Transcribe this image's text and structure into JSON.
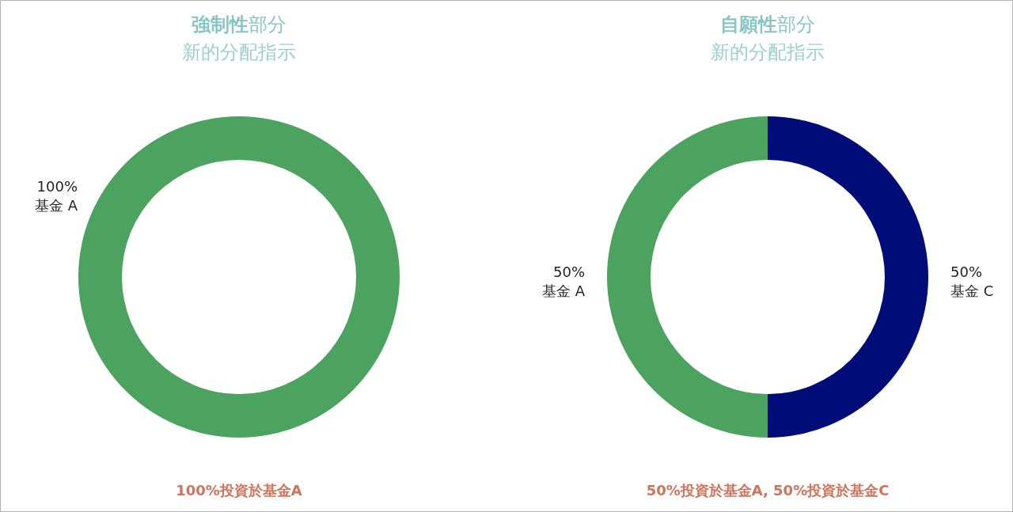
{
  "chart_data": [
    {
      "type": "donut",
      "title": "**強制性**部分",
      "subtitle": "新的分配指示",
      "categories": [
        "基金 A"
      ],
      "values": [
        100
      ],
      "colors": [
        "#4ba35f"
      ],
      "value_labels": [
        "100%"
      ],
      "annotations": [
        "100%投資於基金A"
      ]
    },
    {
      "type": "donut",
      "title": "**自願性**部分",
      "subtitle": "新的分配指示",
      "categories": [
        "基金 A",
        "基金 C"
      ],
      "values": [
        50,
        50
      ],
      "colors": [
        "#4ba35f",
        "#000d78"
      ],
      "value_labels": [
        "50%",
        "50%"
      ],
      "annotations": [
        "50%投資於基金A, 50%投資於基金C"
      ]
    }
  ]
}
